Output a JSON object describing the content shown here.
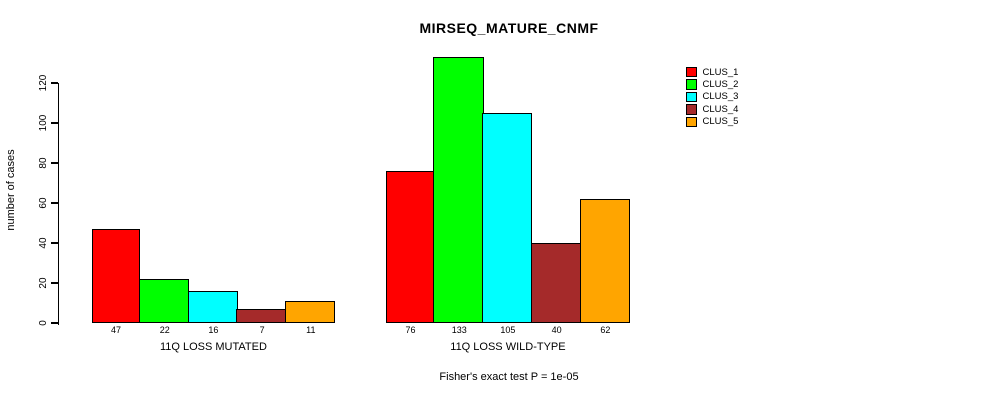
{
  "title": "MIRSEQ_MATURE_CNMF",
  "caption": "Fisher's exact test P = 1e-05",
  "chart_data": {
    "type": "bar",
    "title": "MIRSEQ_MATURE_CNMF",
    "xlabel": "",
    "ylabel": "number of cases",
    "caption": "Fisher's exact test P = 1e-05",
    "groups": [
      "11Q LOSS MUTATED",
      "11Q LOSS WILD-TYPE"
    ],
    "series": [
      {
        "name": "CLUS_1",
        "color": "#FF0000",
        "values": [
          47,
          76
        ]
      },
      {
        "name": "CLUS_2",
        "color": "#00FF00",
        "values": [
          22,
          133
        ]
      },
      {
        "name": "CLUS_3",
        "color": "#00FFFF",
        "values": [
          16,
          105
        ]
      },
      {
        "name": "CLUS_4",
        "color": "#A52A2A",
        "values": [
          7,
          40
        ]
      },
      {
        "name": "CLUS_5",
        "color": "#FFA500",
        "values": [
          11,
          62
        ]
      }
    ],
    "bar_value_labels": [
      [
        "47",
        "22",
        "16",
        "7",
        "11"
      ],
      [
        "76",
        "133",
        "105",
        "40",
        "62"
      ]
    ],
    "yticks": [
      0,
      20,
      40,
      60,
      80,
      100,
      120
    ],
    "ylim": [
      0,
      135
    ],
    "grid": false,
    "legend_position": "top-right-inside",
    "legend_entries": [
      {
        "label": "CLUS_1",
        "color": "#FF0000"
      },
      {
        "label": "CLUS_2",
        "color": "#00FF00"
      },
      {
        "label": "CLUS_3",
        "color": "#00FFFF"
      },
      {
        "label": "CLUS_4",
        "color": "#A52A2A"
      },
      {
        "label": "CLUS_5",
        "color": "#FFA500"
      }
    ]
  }
}
